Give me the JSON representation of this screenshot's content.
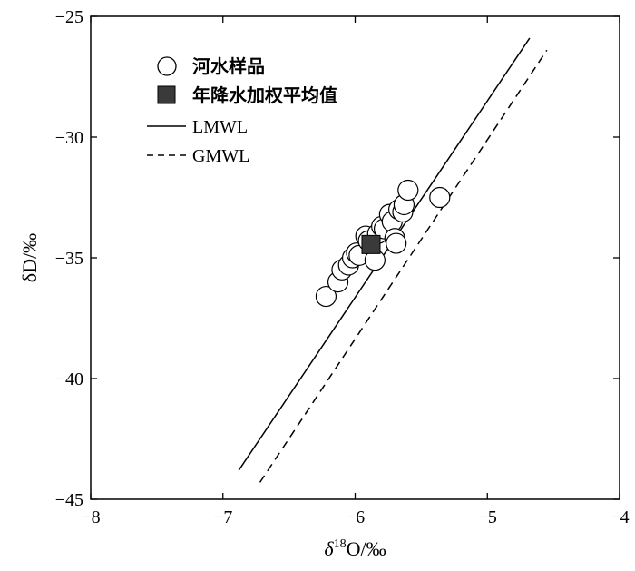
{
  "chart_data": {
    "type": "scatter",
    "xlabel_parts": [
      "δ",
      "18",
      "O/‰"
    ],
    "ylabel": "δD/‰",
    "xlim": [
      -8,
      -4
    ],
    "ylim": [
      -45,
      -25
    ],
    "xticks": [
      -8,
      -7,
      -6,
      -5,
      -4
    ],
    "yticks": [
      -45,
      -40,
      -35,
      -30,
      -25
    ],
    "xtick_labels": [
      "−8",
      "−7",
      "−6",
      "−5",
      "−4"
    ],
    "ytick_labels": [
      "−45",
      "−40",
      "−35",
      "−30",
      "−25"
    ],
    "grid": false,
    "legend_position": "top-left",
    "series": [
      {
        "name": "河水样品",
        "marker": "circle",
        "x": [
          -6.22,
          -6.13,
          -6.1,
          -6.05,
          -6.02,
          -5.99,
          -5.97,
          -5.92,
          -5.9,
          -5.85,
          -5.83,
          -5.8,
          -5.78,
          -5.74,
          -5.72,
          -5.7,
          -5.69,
          -5.67,
          -5.64,
          -5.63,
          -5.6,
          -5.36
        ],
        "y": [
          -36.6,
          -36.0,
          -35.5,
          -35.3,
          -35.0,
          -34.8,
          -34.9,
          -34.1,
          -34.3,
          -35.1,
          -34.0,
          -33.7,
          -33.8,
          -33.2,
          -33.5,
          -34.2,
          -34.4,
          -33.0,
          -33.1,
          -32.8,
          -32.2,
          -32.5
        ]
      },
      {
        "name": "年降水加权平均值",
        "marker": "square",
        "x": [
          -5.88
        ],
        "y": [
          -34.45
        ]
      },
      {
        "name": "LMWL",
        "line": "solid",
        "x": [
          -6.88,
          -4.68
        ],
        "y": [
          -43.8,
          -25.9
        ]
      },
      {
        "name": "GMWL",
        "line": "dashed",
        "x": [
          -6.72,
          -4.55
        ],
        "y": [
          -44.3,
          -26.4
        ]
      }
    ]
  }
}
